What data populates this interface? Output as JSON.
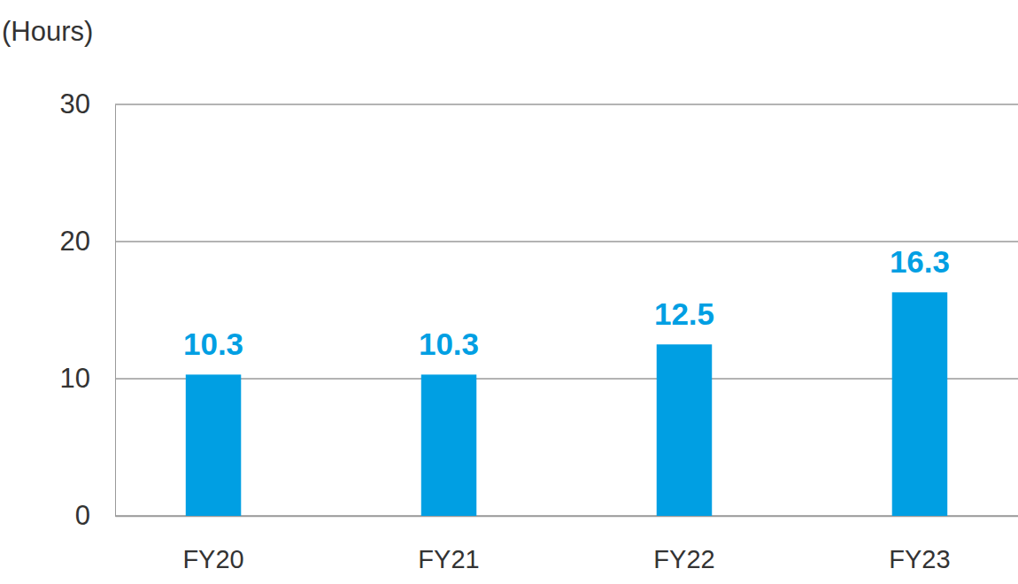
{
  "chart_data": {
    "type": "bar",
    "y_label": "(Hours)",
    "categories": [
      "FY20",
      "FY21",
      "FY22",
      "FY23"
    ],
    "values": [
      10.3,
      10.3,
      12.5,
      16.3
    ],
    "color": "#009fe3",
    "ylim": [
      0,
      30
    ],
    "yticks": [
      0,
      10,
      20,
      30
    ],
    "grid": true,
    "data_labels": true
  }
}
